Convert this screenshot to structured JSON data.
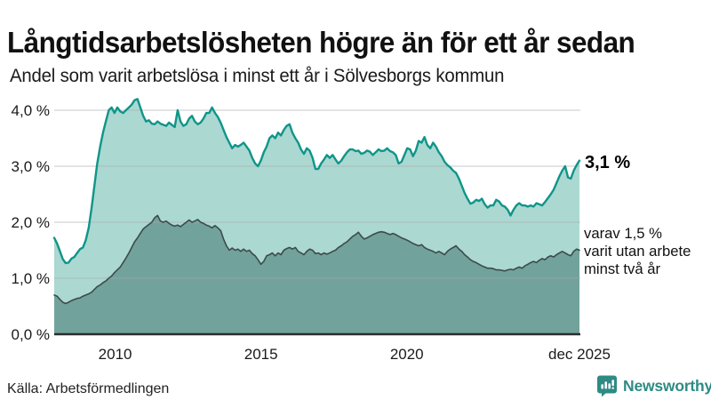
{
  "header": {
    "title": "Långtidsarbetslösheten högre än för ett år sedan",
    "subtitle": "Andel som varit arbetslösa i minst ett år i Sölvesborgs kommun"
  },
  "annotations": {
    "latest_value": "3,1 %",
    "secondary_note": "varav 1,5 %\nvarit utan arbete\nminst två år"
  },
  "footer": {
    "source": "Källa: Arbetsförmedlingen",
    "logo_text": "Newsworthy",
    "logo_icon": "newsworthy-speech-bubble-bar-chart-icon"
  },
  "colors": {
    "brand_teal": "#2e8b84",
    "line_one_year": "#0f9589",
    "fill_one_year": "#abd8d1",
    "line_two_years": "#3c4b4c",
    "fill_two_years": "#72a29c",
    "gridline": "rgba(170,170,176,0.5)",
    "axis": "#2c2c2c",
    "text": "#1a1a1a"
  },
  "chart_data": {
    "type": "area",
    "title": "Långtidsarbetslösheten högre än för ett år sedan",
    "subtitle": "Andel som varit arbetslösa i minst ett år i Sölvesborgs kommun",
    "source": "Källa: Arbetsförmedlingen",
    "unit": "%",
    "x_range": [
      2007.91,
      2025.92
    ],
    "ylim": [
      0,
      4.45
    ],
    "grid": "horizontal",
    "legend_position": "end-of-line-labels",
    "x_axis": {
      "tick_labels": [
        "2010",
        "2015",
        "2020",
        "dec 2025"
      ],
      "tick_values": [
        2010,
        2015,
        2020,
        2025.92
      ]
    },
    "y_axis": {
      "tick_labels": [
        "0,0 %",
        "1,0 %",
        "2,0 %",
        "3,0 %",
        "4,0 %"
      ],
      "tick_values": [
        0,
        1,
        2,
        3,
        4
      ]
    },
    "series": [
      {
        "name": "Arbetslösa minst ett år",
        "end_label": "3,1 %",
        "latest_value": 3.1,
        "values": [
          1.72,
          1.62,
          1.48,
          1.34,
          1.27,
          1.28,
          1.35,
          1.38,
          1.45,
          1.52,
          1.55,
          1.68,
          1.9,
          2.25,
          2.65,
          3.05,
          3.35,
          3.6,
          3.8,
          4.0,
          4.05,
          3.95,
          4.05,
          3.98,
          3.95,
          4.0,
          4.05,
          4.1,
          4.18,
          4.2,
          4.05,
          3.9,
          3.8,
          3.82,
          3.76,
          3.75,
          3.8,
          3.76,
          3.74,
          3.72,
          3.78,
          3.74,
          3.7,
          4.0,
          3.8,
          3.72,
          3.75,
          3.85,
          3.9,
          3.8,
          3.75,
          3.78,
          3.85,
          3.95,
          3.95,
          4.05,
          3.95,
          3.88,
          3.78,
          3.65,
          3.52,
          3.42,
          3.32,
          3.38,
          3.35,
          3.38,
          3.42,
          3.35,
          3.28,
          3.15,
          3.05,
          3.0,
          3.1,
          3.25,
          3.35,
          3.5,
          3.55,
          3.5,
          3.6,
          3.55,
          3.65,
          3.72,
          3.75,
          3.6,
          3.5,
          3.42,
          3.3,
          3.22,
          3.32,
          3.28,
          3.15,
          2.95,
          2.95,
          3.05,
          3.12,
          3.2,
          3.15,
          3.2,
          3.12,
          3.05,
          3.1,
          3.18,
          3.25,
          3.3,
          3.3,
          3.27,
          3.28,
          3.22,
          3.24,
          3.28,
          3.26,
          3.2,
          3.25,
          3.3,
          3.27,
          3.28,
          3.32,
          3.27,
          3.25,
          3.2,
          3.05,
          3.08,
          3.2,
          3.32,
          3.3,
          3.18,
          3.28,
          3.45,
          3.42,
          3.52,
          3.38,
          3.32,
          3.42,
          3.35,
          3.25,
          3.18,
          3.08,
          3.02,
          2.98,
          2.92,
          2.88,
          2.78,
          2.65,
          2.52,
          2.42,
          2.33,
          2.35,
          2.4,
          2.38,
          2.42,
          2.32,
          2.26,
          2.3,
          2.3,
          2.4,
          2.37,
          2.3,
          2.28,
          2.22,
          2.12,
          2.22,
          2.3,
          2.34,
          2.3,
          2.3,
          2.28,
          2.3,
          2.28,
          2.34,
          2.32,
          2.3,
          2.36,
          2.43,
          2.5,
          2.58,
          2.7,
          2.82,
          2.92,
          3.0,
          2.8,
          2.78,
          2.92,
          3.02,
          3.1
        ]
      },
      {
        "name": "varav utan arbete minst två år",
        "end_label": "varav 1,5 % varit utan arbete minst två år",
        "latest_value": 1.5,
        "values": [
          0.7,
          0.68,
          0.62,
          0.57,
          0.55,
          0.57,
          0.6,
          0.62,
          0.64,
          0.65,
          0.68,
          0.7,
          0.72,
          0.75,
          0.8,
          0.85,
          0.88,
          0.92,
          0.95,
          1.0,
          1.04,
          1.1,
          1.15,
          1.2,
          1.28,
          1.36,
          1.45,
          1.55,
          1.65,
          1.72,
          1.8,
          1.88,
          1.92,
          1.96,
          2.0,
          2.08,
          2.12,
          2.02,
          2.0,
          2.02,
          1.98,
          1.95,
          1.93,
          1.95,
          1.92,
          1.96,
          2.0,
          2.04,
          2.0,
          2.02,
          2.05,
          2.0,
          1.98,
          1.95,
          1.93,
          1.9,
          1.94,
          1.9,
          1.85,
          1.7,
          1.58,
          1.5,
          1.54,
          1.5,
          1.52,
          1.48,
          1.52,
          1.48,
          1.5,
          1.44,
          1.4,
          1.33,
          1.25,
          1.3,
          1.4,
          1.42,
          1.45,
          1.4,
          1.45,
          1.42,
          1.5,
          1.53,
          1.55,
          1.52,
          1.55,
          1.48,
          1.45,
          1.42,
          1.48,
          1.52,
          1.5,
          1.44,
          1.45,
          1.42,
          1.45,
          1.43,
          1.45,
          1.48,
          1.5,
          1.55,
          1.58,
          1.62,
          1.65,
          1.7,
          1.75,
          1.78,
          1.82,
          1.75,
          1.7,
          1.72,
          1.75,
          1.78,
          1.8,
          1.82,
          1.83,
          1.82,
          1.8,
          1.78,
          1.8,
          1.78,
          1.75,
          1.72,
          1.7,
          1.68,
          1.65,
          1.62,
          1.6,
          1.58,
          1.6,
          1.55,
          1.52,
          1.5,
          1.48,
          1.45,
          1.48,
          1.45,
          1.42,
          1.48,
          1.52,
          1.55,
          1.58,
          1.52,
          1.48,
          1.42,
          1.38,
          1.33,
          1.3,
          1.28,
          1.25,
          1.22,
          1.2,
          1.18,
          1.18,
          1.17,
          1.15,
          1.15,
          1.14,
          1.13,
          1.15,
          1.16,
          1.15,
          1.18,
          1.2,
          1.18,
          1.22,
          1.25,
          1.28,
          1.3,
          1.28,
          1.32,
          1.35,
          1.33,
          1.38,
          1.4,
          1.38,
          1.42,
          1.45,
          1.48,
          1.45,
          1.42,
          1.4,
          1.48,
          1.52,
          1.5
        ]
      }
    ]
  }
}
